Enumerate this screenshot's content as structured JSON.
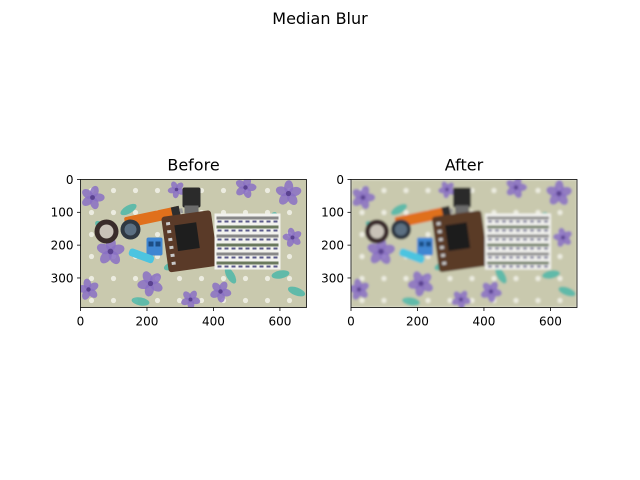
{
  "figure": {
    "suptitle": "Median Blur"
  },
  "panels": [
    {
      "title": "Before",
      "variant": "before"
    },
    {
      "title": "After",
      "variant": "after"
    }
  ],
  "chart_data": [
    {
      "type": "image",
      "title": "Before",
      "xlim": [
        0,
        680
      ],
      "ylim": [
        390,
        0
      ],
      "xticks": [
        0,
        200,
        400,
        600
      ],
      "yticks": [
        0,
        100,
        200,
        300
      ],
      "xlabel": "",
      "ylabel": ""
    },
    {
      "type": "image",
      "title": "After",
      "xlim": [
        0,
        680
      ],
      "ylim": [
        390,
        0
      ],
      "xticks": [
        0,
        200,
        400,
        600
      ],
      "yticks": [
        0,
        100,
        200,
        300
      ],
      "xlabel": "",
      "ylabel": ""
    }
  ],
  "photo": {
    "description_colors": {
      "background": "#c9c9ae",
      "flower_purple": "#8a70c4",
      "leaf_teal": "#54b8a8",
      "battery_orange": "#e0701c",
      "pcb_brown": "#5a3a28",
      "terminal_blue": "#3f86d2",
      "paper_white": "#f2f2ee"
    }
  }
}
